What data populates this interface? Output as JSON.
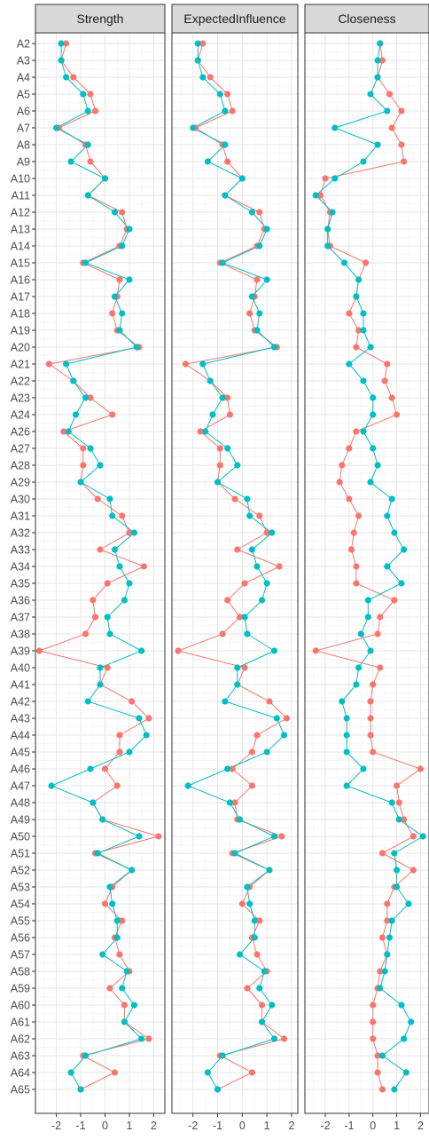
{
  "chart_data": [
    {
      "type": "line",
      "title": "Strength",
      "xlabel": "",
      "ylabel": "",
      "xlim": [
        -2.7,
        2.3
      ],
      "xticks": [
        "-2",
        "-1",
        "0",
        "1",
        "2"
      ],
      "grid": true,
      "categories": [
        "A2",
        "A3",
        "A4",
        "A5",
        "A6",
        "A7",
        "A8",
        "A9",
        "A10",
        "A11",
        "A12",
        "A13",
        "A14",
        "A15",
        "A16",
        "A17",
        "A18",
        "A19",
        "A20",
        "A21",
        "A22",
        "A23",
        "A24",
        "A26",
        "A27",
        "A28",
        "A29",
        "A30",
        "A31",
        "A32",
        "A33",
        "A34",
        "A35",
        "A36",
        "A37",
        "A38",
        "A39",
        "A40",
        "A41",
        "A42",
        "A43",
        "A44",
        "A45",
        "A46",
        "A47",
        "A48",
        "A49",
        "A50",
        "A51",
        "A52",
        "A53",
        "A54",
        "A55",
        "A56",
        "A57",
        "A58",
        "A59",
        "A60",
        "A61",
        "A62",
        "A63",
        "A64",
        "A65"
      ],
      "series": [
        {
          "color": "#F8766D",
          "values": [
            -1.6,
            -1.8,
            -1.3,
            -0.6,
            -0.4,
            -1.9,
            -0.8,
            -0.6,
            0.0,
            -0.7,
            0.7,
            0.9,
            0.6,
            -0.9,
            0.6,
            0.5,
            0.3,
            0.5,
            1.4,
            -2.3,
            -1.3,
            -0.6,
            0.3,
            -1.7,
            -0.9,
            -0.9,
            -1.0,
            -0.3,
            0.7,
            1.0,
            -0.2,
            1.6,
            0.1,
            -0.5,
            -0.4,
            -0.8,
            -2.7,
            0.1,
            -0.2,
            1.1,
            1.8,
            0.6,
            0.6,
            0.0,
            0.5,
            -0.5,
            -0.1,
            2.2,
            -0.4,
            1.1,
            0.3,
            0.0,
            0.7,
            0.4,
            0.6,
            1.0,
            0.2,
            0.8,
            0.8,
            1.8,
            -0.9,
            0.4,
            -1.0
          ]
        },
        {
          "color": "#00BFC4",
          "values": [
            -1.8,
            -1.8,
            -1.6,
            -0.9,
            -0.7,
            -2.0,
            -0.7,
            -1.4,
            0.0,
            -0.7,
            0.4,
            1.0,
            0.7,
            -0.8,
            1.0,
            0.4,
            0.7,
            0.6,
            1.3,
            -1.6,
            -1.3,
            -0.8,
            -1.2,
            -1.5,
            -0.6,
            -0.2,
            -1.0,
            0.2,
            0.3,
            1.2,
            0.4,
            0.6,
            1.0,
            0.8,
            0.1,
            0.2,
            1.5,
            -0.2,
            -0.2,
            -0.7,
            1.4,
            1.7,
            1.0,
            -0.6,
            -2.2,
            -0.5,
            -0.1,
            1.4,
            -0.3,
            1.1,
            0.2,
            0.3,
            0.5,
            0.5,
            -0.1,
            0.9,
            0.7,
            1.2,
            0.8,
            1.5,
            -0.8,
            -1.4,
            -1.0
          ]
        }
      ]
    },
    {
      "type": "line",
      "title": "ExpectedInfluence",
      "xlabel": "",
      "ylabel": "",
      "xlim": [
        -2.7,
        2.1
      ],
      "xticks": [
        "-2",
        "-1",
        "0",
        "1",
        "2"
      ],
      "grid": true,
      "categories": [
        "A2",
        "A3",
        "A4",
        "A5",
        "A6",
        "A7",
        "A8",
        "A9",
        "A10",
        "A11",
        "A12",
        "A13",
        "A14",
        "A15",
        "A16",
        "A17",
        "A18",
        "A19",
        "A20",
        "A21",
        "A22",
        "A23",
        "A24",
        "A26",
        "A27",
        "A28",
        "A29",
        "A30",
        "A31",
        "A32",
        "A33",
        "A34",
        "A35",
        "A36",
        "A37",
        "A38",
        "A39",
        "A40",
        "A41",
        "A42",
        "A43",
        "A44",
        "A45",
        "A46",
        "A47",
        "A48",
        "A49",
        "A50",
        "A51",
        "A52",
        "A53",
        "A54",
        "A55",
        "A56",
        "A57",
        "A58",
        "A59",
        "A60",
        "A61",
        "A62",
        "A63",
        "A64",
        "A65"
      ],
      "series": [
        {
          "color": "#F8766D",
          "values": [
            -1.6,
            -1.8,
            -1.3,
            -0.6,
            -0.4,
            -1.9,
            -0.8,
            -0.6,
            0.0,
            -0.7,
            0.7,
            0.9,
            0.6,
            -0.9,
            0.6,
            0.5,
            0.3,
            0.5,
            1.4,
            -2.3,
            -1.3,
            -0.6,
            -0.5,
            -1.7,
            -0.9,
            -0.9,
            -1.0,
            -0.3,
            0.7,
            1.0,
            -0.2,
            1.5,
            0.1,
            -0.6,
            -0.1,
            -0.8,
            -2.6,
            0.1,
            -0.2,
            1.1,
            1.8,
            0.6,
            0.4,
            -0.4,
            0.4,
            -0.3,
            -0.2,
            1.6,
            -0.4,
            1.1,
            0.3,
            0.0,
            0.7,
            0.4,
            0.6,
            1.0,
            0.2,
            0.8,
            0.8,
            1.7,
            -0.9,
            0.4,
            -1.0
          ]
        },
        {
          "color": "#00BFC4",
          "values": [
            -1.8,
            -1.8,
            -1.6,
            -0.9,
            -0.7,
            -2.0,
            -0.7,
            -1.4,
            0.0,
            -0.7,
            0.4,
            1.0,
            0.7,
            -0.8,
            1.0,
            0.4,
            0.7,
            0.6,
            1.3,
            -1.6,
            -1.3,
            -0.8,
            -1.2,
            -1.5,
            -0.6,
            -0.2,
            -1.0,
            0.2,
            0.3,
            1.2,
            0.4,
            0.6,
            1.0,
            0.8,
            0.1,
            0.2,
            1.3,
            -0.2,
            -0.2,
            -0.7,
            1.4,
            1.7,
            1.0,
            -0.6,
            -2.2,
            -0.5,
            -0.1,
            1.3,
            -0.3,
            1.1,
            0.2,
            0.3,
            0.5,
            0.5,
            -0.1,
            0.9,
            0.7,
            1.2,
            0.8,
            1.3,
            -0.8,
            -1.4,
            -1.0
          ]
        }
      ]
    },
    {
      "type": "line",
      "title": "Closeness",
      "xlabel": "",
      "ylabel": "",
      "xlim": [
        -2.7,
        2.2
      ],
      "xticks": [
        "-2",
        "-1",
        "0",
        "1",
        "2"
      ],
      "grid": true,
      "categories": [
        "A2",
        "A3",
        "A4",
        "A5",
        "A6",
        "A7",
        "A8",
        "A9",
        "A10",
        "A11",
        "A12",
        "A13",
        "A14",
        "A15",
        "A16",
        "A17",
        "A18",
        "A19",
        "A20",
        "A21",
        "A22",
        "A23",
        "A24",
        "A26",
        "A27",
        "A28",
        "A29",
        "A30",
        "A31",
        "A32",
        "A33",
        "A34",
        "A35",
        "A36",
        "A37",
        "A38",
        "A39",
        "A40",
        "A41",
        "A42",
        "A43",
        "A44",
        "A45",
        "A46",
        "A47",
        "A48",
        "A49",
        "A50",
        "A51",
        "A52",
        "A53",
        "A54",
        "A55",
        "A56",
        "A57",
        "A58",
        "A59",
        "A60",
        "A61",
        "A62",
        "A63",
        "A64",
        "A65"
      ],
      "series": [
        {
          "color": "#F8766D",
          "values": [
            0.3,
            0.4,
            0.2,
            0.7,
            1.2,
            0.8,
            1.2,
            1.3,
            -2.0,
            -2.2,
            -1.8,
            -1.9,
            -1.8,
            -0.3,
            -0.6,
            -0.7,
            -1.0,
            -0.6,
            -0.7,
            0.6,
            0.5,
            0.8,
            1.0,
            -0.7,
            -1.0,
            -1.3,
            -1.4,
            -1.0,
            -0.6,
            -0.8,
            -0.9,
            -0.7,
            -0.7,
            0.9,
            0.3,
            0.2,
            -2.4,
            0.3,
            0.0,
            -0.1,
            -0.1,
            -0.1,
            0.0,
            2.0,
            1.0,
            1.1,
            1.3,
            1.7,
            0.4,
            1.7,
            0.9,
            0.6,
            0.6,
            0.4,
            0.6,
            0.3,
            0.2,
            0.0,
            0.0,
            0.0,
            0.2,
            0.2,
            0.4
          ]
        },
        {
          "color": "#00BFC4",
          "values": [
            0.3,
            0.2,
            0.2,
            -0.1,
            0.6,
            -1.6,
            0.2,
            -0.4,
            -1.6,
            -2.4,
            -1.7,
            -1.9,
            -1.9,
            -1.2,
            -0.6,
            -0.7,
            -0.4,
            -0.4,
            -0.1,
            -1.0,
            -0.4,
            0.0,
            0.0,
            -0.4,
            0.0,
            0.2,
            -0.1,
            0.8,
            0.6,
            0.9,
            1.3,
            0.6,
            1.2,
            -0.2,
            -0.2,
            -0.5,
            -0.1,
            -0.6,
            -0.7,
            -1.3,
            -1.1,
            -1.1,
            -1.1,
            -0.4,
            -1.1,
            0.8,
            1.1,
            2.1,
            0.9,
            1.0,
            1.0,
            1.5,
            0.8,
            0.7,
            0.6,
            0.5,
            0.3,
            1.2,
            1.6,
            1.3,
            0.4,
            1.4,
            0.9
          ]
        }
      ]
    }
  ]
}
